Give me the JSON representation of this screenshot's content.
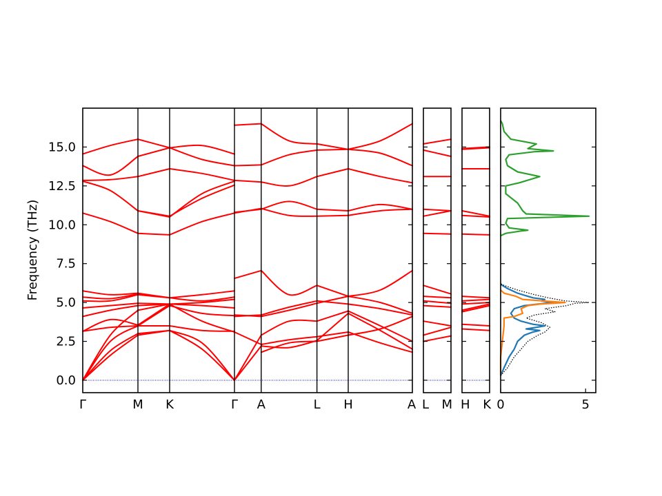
{
  "chart_data": {
    "type": "line",
    "ylabel": "Frequency (THz)",
    "ylim": [
      -0.8,
      17.5
    ],
    "yticks": [
      "0.0",
      "2.5",
      "5.0",
      "7.5",
      "10.0",
      "12.5",
      "15.0"
    ],
    "band_color": "#ff0000",
    "zero_line_color": "#0000cc",
    "panels": [
      {
        "id": "main",
        "xticks": [
          "Γ",
          "M",
          "K",
          "Γ",
          "A",
          "L",
          "H",
          "A"
        ],
        "segments": [
          {
            "from": "Γ",
            "to": "M",
            "bands": [
              [
                0,
                1.6,
                2.9
              ],
              [
                0,
                1.9,
                3.0
              ],
              [
                0,
                2.5,
                3.5
              ],
              [
                0,
                2.9,
                4.5
              ],
              [
                3.15,
                3.4,
                3.5
              ],
              [
                3.15,
                3.9,
                3.55
              ],
              [
                4.1,
                4.5,
                4.8
              ],
              [
                4.65,
                4.8,
                4.95
              ],
              [
                5.1,
                5.1,
                5.5
              ],
              [
                5.35,
                5.25,
                5.55
              ],
              [
                5.75,
                5.5,
                5.6
              ],
              [
                10.75,
                10.2,
                9.45
              ],
              [
                12.8,
                12.2,
                10.9
              ],
              [
                12.85,
                12.9,
                13.1
              ],
              [
                13.8,
                13.2,
                14.4
              ],
              [
                14.55,
                15.1,
                15.5
              ]
            ]
          },
          {
            "from": "M",
            "to": "K",
            "bands": [
              [
                2.9,
                3.2
              ],
              [
                3.0,
                3.2
              ],
              [
                3.5,
                3.5
              ],
              [
                4.5,
                4.9
              ],
              [
                3.5,
                4.8
              ],
              [
                3.55,
                4.9
              ],
              [
                4.8,
                4.9
              ],
              [
                4.95,
                4.9
              ],
              [
                5.5,
                5.3
              ],
              [
                5.55,
                5.3
              ],
              [
                5.6,
                5.3
              ],
              [
                9.45,
                9.35
              ],
              [
                10.9,
                10.5
              ],
              [
                10.9,
                10.55
              ],
              [
                13.1,
                13.6
              ],
              [
                14.4,
                14.95
              ],
              [
                15.5,
                14.95
              ]
            ]
          },
          {
            "from": "K",
            "to": "Γ",
            "bands": [
              [
                3.2,
                2.4,
                0
              ],
              [
                3.2,
                2.0,
                0
              ],
              [
                3.5,
                3.2,
                3.15
              ],
              [
                4.9,
                3.8,
                3.1
              ],
              [
                4.8,
                4.3,
                4.15
              ],
              [
                4.9,
                4.8,
                4.65
              ],
              [
                4.9,
                5.0,
                5.2
              ],
              [
                5.3,
                5.5,
                5.75
              ],
              [
                5.3,
                5.1,
                5.35
              ],
              [
                9.35,
                10.2,
                10.75
              ],
              [
                10.5,
                12.0,
                12.8
              ],
              [
                10.55,
                11.7,
                12.55
              ],
              [
                13.6,
                13.3,
                12.85
              ],
              [
                14.95,
                14.2,
                13.8
              ],
              [
                14.95,
                15.1,
                14.55
              ]
            ]
          },
          {
            "from": "Γ",
            "to": "A",
            "bands": [
              [
                0,
                2.9
              ],
              [
                0,
                2.2
              ],
              [
                3.1,
                2.3
              ],
              [
                4.1,
                4.2
              ],
              [
                4.2,
                4.1
              ],
              [
                6.55,
                7.05
              ],
              [
                10.75,
                11.05
              ],
              [
                10.8,
                11.0
              ],
              [
                12.85,
                12.75
              ],
              [
                13.8,
                13.85
              ],
              [
                16.4,
                16.5
              ]
            ]
          },
          {
            "from": "A",
            "to": "L",
            "bands": [
              [
                2.9,
                3.8,
                3.8
              ],
              [
                2.2,
                2.1,
                2.55
              ],
              [
                2.3,
                2.6,
                2.8
              ],
              [
                4.2,
                4.7,
                5.1
              ],
              [
                4.1,
                4.5,
                4.95
              ],
              [
                7.05,
                5.5,
                6.1
              ],
              [
                11.05,
                10.6,
                10.55
              ],
              [
                11.0,
                11.5,
                11.0
              ],
              [
                12.75,
                12.5,
                13.1
              ],
              [
                13.85,
                14.5,
                14.8
              ],
              [
                16.5,
                15.4,
                15.2
              ],
              [
                1.8,
                2.4,
                2.5
              ]
            ]
          },
          {
            "from": "L",
            "to": "H",
            "bands": [
              [
                3.8,
                4.45
              ],
              [
                2.55,
                4.3
              ],
              [
                2.8,
                3.1
              ],
              [
                5.1,
                4.9
              ],
              [
                4.95,
                5.4
              ],
              [
                6.1,
                5.4
              ],
              [
                10.55,
                10.6
              ],
              [
                11.0,
                10.9
              ],
              [
                13.1,
                13.6
              ],
              [
                14.8,
                14.85
              ],
              [
                15.2,
                14.85
              ],
              [
                2.5,
                2.9
              ]
            ]
          },
          {
            "from": "H",
            "to": "A",
            "bands": [
              [
                4.45,
                3.5,
                2.5
              ],
              [
                4.3,
                3.2,
                2.0
              ],
              [
                3.1,
                2.4,
                1.8
              ],
              [
                4.9,
                4.6,
                4.2
              ],
              [
                5.4,
                5.0,
                4.3
              ],
              [
                5.4,
                5.8,
                7.05
              ],
              [
                10.6,
                10.9,
                11.0
              ],
              [
                10.9,
                11.3,
                11.0
              ],
              [
                13.6,
                13.1,
                12.7
              ],
              [
                14.85,
                14.6,
                13.8
              ],
              [
                14.85,
                15.4,
                16.5
              ],
              [
                2.9,
                3.3,
                4.1
              ]
            ]
          }
        ]
      },
      {
        "id": "LM",
        "xticks": [
          "L",
          "M"
        ],
        "segments": [
          {
            "from": "L",
            "to": "M",
            "bands": [
              [
                2.5,
                2.85
              ],
              [
                2.9,
                3.4
              ],
              [
                3.8,
                3.5
              ],
              [
                4.8,
                4.7
              ],
              [
                5.1,
                4.95
              ],
              [
                5.4,
                5.3
              ],
              [
                6.1,
                5.55
              ],
              [
                9.45,
                9.4
              ],
              [
                10.55,
                10.9
              ],
              [
                11.0,
                10.9
              ],
              [
                13.1,
                13.1
              ],
              [
                14.8,
                14.4
              ],
              [
                15.2,
                15.5
              ]
            ]
          }
        ]
      },
      {
        "id": "HK",
        "xticks": [
          "H",
          "K"
        ],
        "segments": [
          {
            "from": "H",
            "to": "K",
            "bands": [
              [
                3.3,
                3.2
              ],
              [
                3.6,
                3.5
              ],
              [
                4.4,
                4.8
              ],
              [
                4.5,
                4.9
              ],
              [
                4.9,
                5.0
              ],
              [
                5.1,
                5.2
              ],
              [
                5.4,
                5.3
              ],
              [
                9.4,
                9.35
              ],
              [
                10.6,
                10.5
              ],
              [
                10.9,
                10.55
              ],
              [
                13.6,
                13.6
              ],
              [
                14.85,
                14.95
              ],
              [
                14.9,
                15.0
              ]
            ]
          }
        ]
      },
      {
        "id": "dos",
        "xticks": [
          "0",
          "5"
        ],
        "xlim": [
          0,
          5.6
        ],
        "series": [
          {
            "color": "#1f77b4",
            "points": [
              [
                0,
                0.3
              ],
              [
                0.2,
                0.8
              ],
              [
                0.5,
                1.5
              ],
              [
                0.8,
                2.0
              ],
              [
                1.0,
                2.5
              ],
              [
                1.4,
                2.9
              ],
              [
                1.9,
                3.1
              ],
              [
                2.3,
                3.2
              ],
              [
                1.5,
                3.3
              ],
              [
                2.1,
                3.4
              ],
              [
                2.6,
                3.5
              ],
              [
                1.9,
                3.6
              ],
              [
                1.2,
                3.8
              ],
              [
                0.8,
                4.0
              ],
              [
                0.6,
                4.3
              ],
              [
                0.8,
                4.6
              ],
              [
                1.4,
                4.8
              ],
              [
                2.2,
                4.9
              ],
              [
                3.1,
                5.0
              ],
              [
                2.4,
                5.1
              ],
              [
                2.6,
                5.2
              ],
              [
                1.9,
                5.3
              ],
              [
                1.6,
                5.4
              ],
              [
                1.0,
                5.6
              ],
              [
                0.4,
                5.9
              ],
              [
                0.1,
                6.1
              ],
              [
                0,
                6.2
              ]
            ]
          },
          {
            "color": "#ff7f0e",
            "points": [
              [
                0,
                0.3
              ],
              [
                0,
                1.5
              ],
              [
                0.1,
                2.5
              ],
              [
                0.15,
                3.0
              ],
              [
                0.2,
                3.5
              ],
              [
                0.2,
                4.0
              ],
              [
                0.8,
                4.1
              ],
              [
                1.3,
                4.3
              ],
              [
                1.2,
                4.6
              ],
              [
                1.6,
                4.8
              ],
              [
                2.3,
                4.9
              ],
              [
                3.8,
                5.0
              ],
              [
                2.5,
                5.1
              ],
              [
                1.3,
                5.2
              ],
              [
                0.9,
                5.4
              ],
              [
                0.2,
                5.6
              ],
              [
                0,
                5.8
              ]
            ]
          },
          {
            "color": "#2ca02c",
            "points": [
              [
                0,
                9.3
              ],
              [
                0.3,
                9.45
              ],
              [
                1.2,
                9.6
              ],
              [
                1.6,
                9.65
              ],
              [
                0.5,
                9.8
              ],
              [
                0.3,
                10.1
              ],
              [
                0.4,
                10.4
              ],
              [
                5.2,
                10.55
              ],
              [
                1.5,
                10.7
              ],
              [
                1.3,
                10.9
              ],
              [
                1.0,
                11.4
              ],
              [
                0.3,
                12.0
              ],
              [
                0.3,
                12.5
              ],
              [
                1.1,
                12.7
              ],
              [
                2.3,
                13.1
              ],
              [
                1.0,
                13.4
              ],
              [
                0.4,
                13.8
              ],
              [
                0.3,
                14.2
              ],
              [
                0.5,
                14.5
              ],
              [
                2.0,
                14.7
              ],
              [
                3.1,
                14.75
              ],
              [
                1.6,
                14.9
              ],
              [
                2.1,
                15.2
              ],
              [
                0.6,
                15.5
              ],
              [
                0.2,
                16.0
              ],
              [
                0.1,
                16.5
              ],
              [
                0,
                16.7
              ]
            ]
          },
          {
            "color": "#000000",
            "dashed": true,
            "points": [
              [
                0,
                0.3
              ],
              [
                0.4,
                0.8
              ],
              [
                0.8,
                1.5
              ],
              [
                1.2,
                2.0
              ],
              [
                1.6,
                2.5
              ],
              [
                2.2,
                2.9
              ],
              [
                2.6,
                3.1
              ],
              [
                2.9,
                3.4
              ],
              [
                2.4,
                3.7
              ],
              [
                1.5,
                4.0
              ],
              [
                2.0,
                4.2
              ],
              [
                3.2,
                4.4
              ],
              [
                2.6,
                4.6
              ],
              [
                3.9,
                4.8
              ],
              [
                4.4,
                4.95
              ],
              [
                5.2,
                5.0
              ],
              [
                3.8,
                5.1
              ],
              [
                2.8,
                5.3
              ],
              [
                2.0,
                5.5
              ],
              [
                1.0,
                5.8
              ],
              [
                0.2,
                6.1
              ],
              [
                0,
                6.2
              ]
            ]
          }
        ]
      }
    ]
  }
}
